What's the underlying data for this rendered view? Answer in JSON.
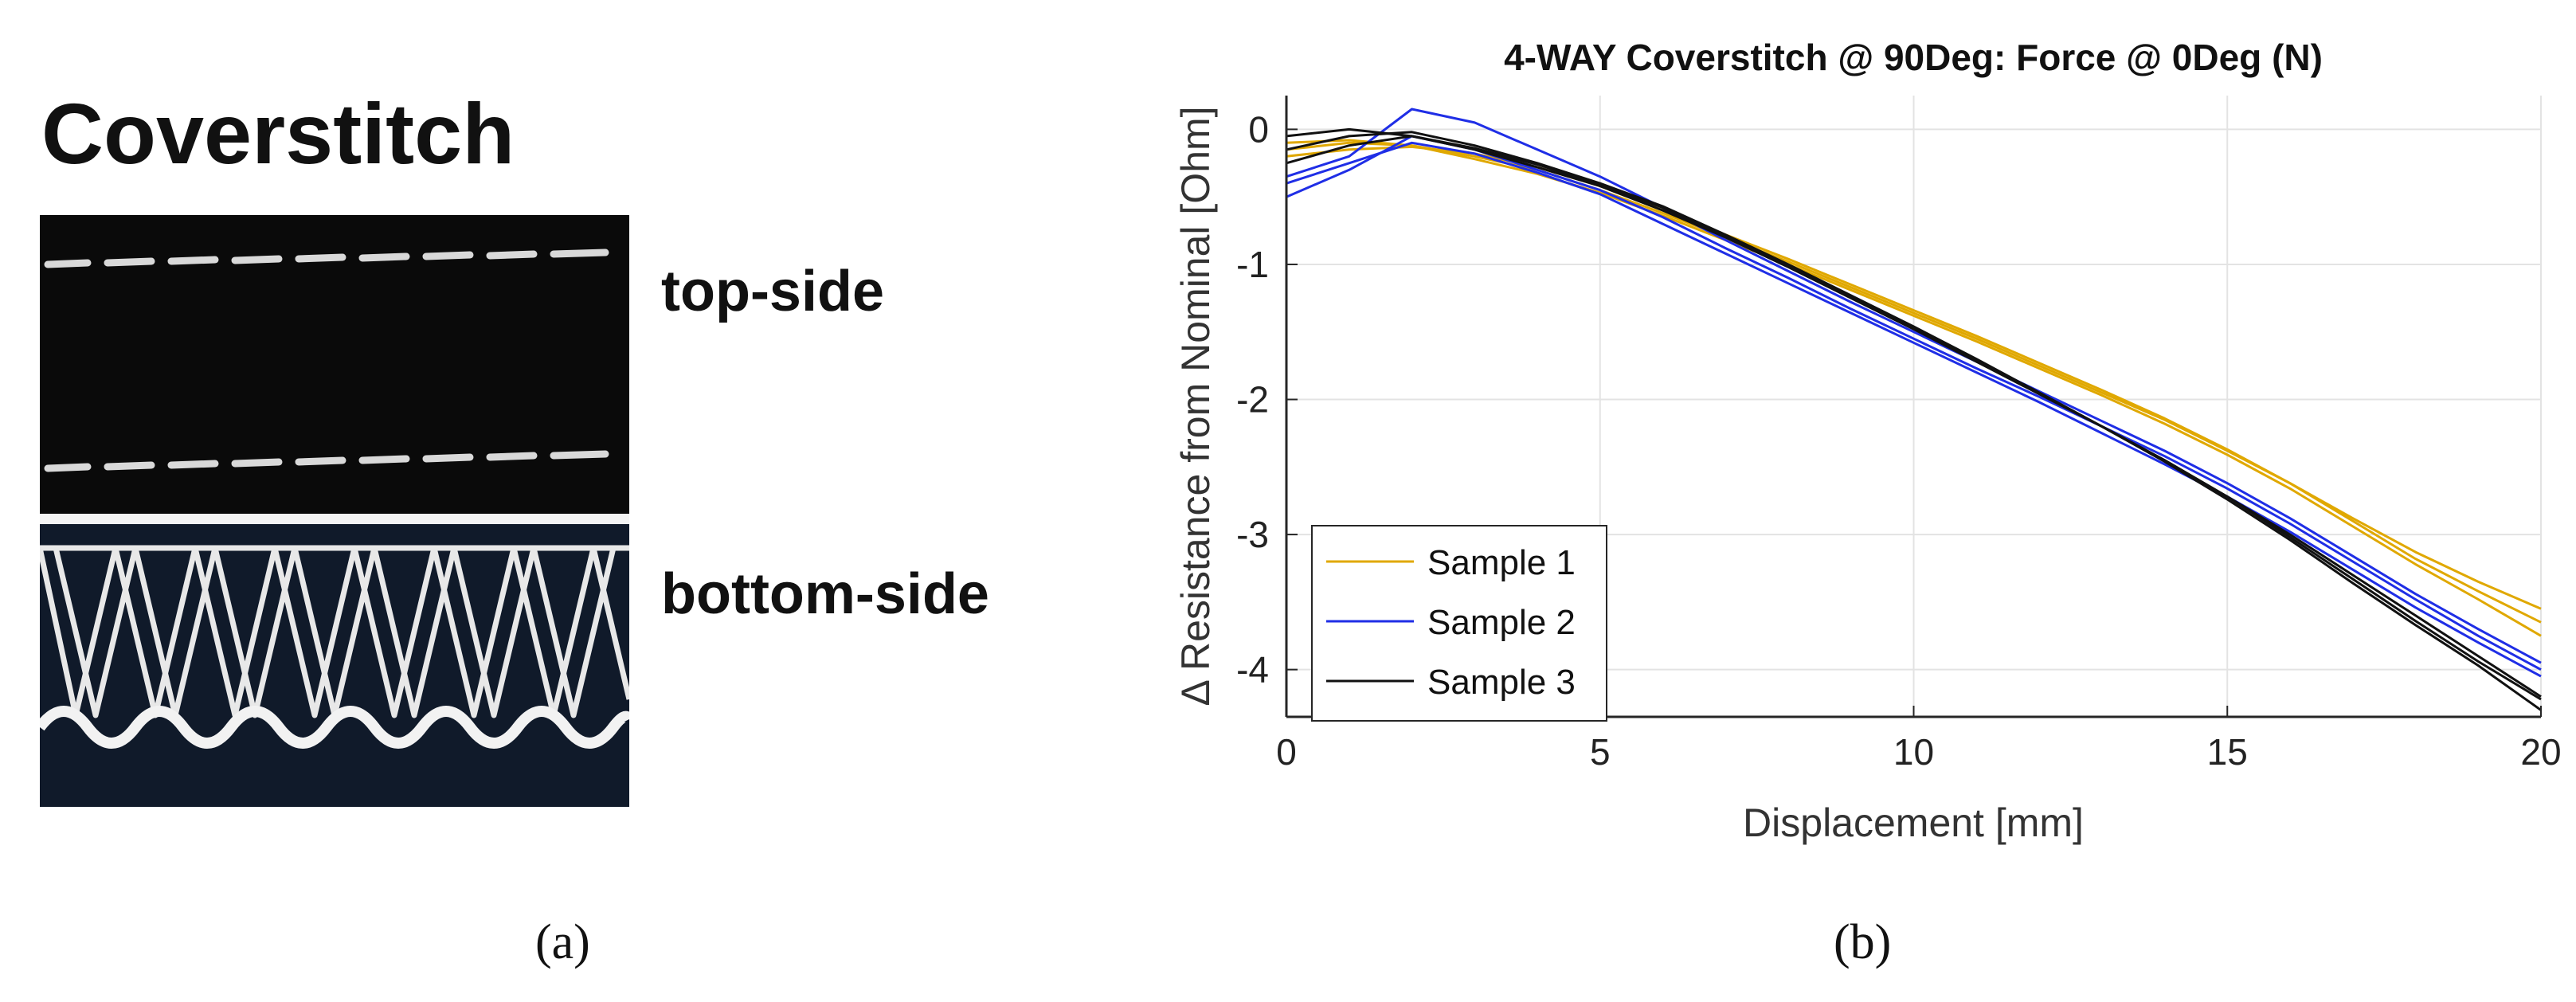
{
  "panel_a": {
    "heading": "Coverstitch",
    "top_label": "top-side",
    "bottom_label": "bottom-side",
    "caption": "(a)"
  },
  "panel_b": {
    "caption": "(b)"
  },
  "chart_data": {
    "type": "line",
    "title": "4-WAY Coverstitch @ 90Deg: Force @ 0Deg (N)",
    "xlabel": "Displacement [mm]",
    "ylabel": "Δ Resistance from Nominal [Ohm]",
    "xlim": [
      0,
      20
    ],
    "ylim": [
      -4.35,
      0.25
    ],
    "xticks": [
      0,
      5,
      10,
      15,
      20
    ],
    "xtick_labels": [
      "0",
      "5",
      "10",
      "15",
      "20"
    ],
    "yticks": [
      0,
      -1,
      -2,
      -3,
      -4
    ],
    "ytick_labels": [
      "0",
      "-1",
      "-2",
      "-3",
      "-4"
    ],
    "grid": true,
    "legend_position": "bottom-left",
    "x": [
      0,
      1,
      2,
      3,
      4,
      5,
      6,
      7,
      8,
      9,
      10,
      11,
      12,
      13,
      14,
      15,
      16,
      17,
      18,
      19,
      20
    ],
    "series": [
      {
        "name": "Sample 1",
        "color": "#e0a800",
        "runs": [
          [
            -0.15,
            -0.1,
            -0.12,
            -0.2,
            -0.3,
            -0.45,
            -0.62,
            -0.8,
            -0.98,
            -1.17,
            -1.36,
            -1.55,
            -1.75,
            -1.95,
            -2.15,
            -2.38,
            -2.62,
            -2.88,
            -3.13,
            -3.35,
            -3.55
          ],
          [
            -0.2,
            -0.15,
            -0.13,
            -0.18,
            -0.28,
            -0.42,
            -0.6,
            -0.78,
            -0.96,
            -1.15,
            -1.34,
            -1.53,
            -1.73,
            -1.93,
            -2.14,
            -2.37,
            -2.62,
            -2.9,
            -3.18,
            -3.42,
            -3.65
          ],
          [
            -0.1,
            -0.08,
            -0.12,
            -0.22,
            -0.33,
            -0.47,
            -0.64,
            -0.82,
            -1.0,
            -1.19,
            -1.38,
            -1.57,
            -1.77,
            -1.97,
            -2.18,
            -2.41,
            -2.66,
            -2.94,
            -3.22,
            -3.48,
            -3.75
          ]
        ]
      },
      {
        "name": "Sample 2",
        "color": "#1f2ee6",
        "runs": [
          [
            -0.35,
            -0.2,
            0.15,
            0.05,
            -0.15,
            -0.35,
            -0.58,
            -0.82,
            -1.05,
            -1.28,
            -1.5,
            -1.72,
            -1.94,
            -2.16,
            -2.38,
            -2.62,
            -2.88,
            -3.16,
            -3.44,
            -3.7,
            -3.95
          ],
          [
            -0.5,
            -0.3,
            -0.05,
            -0.15,
            -0.3,
            -0.45,
            -0.65,
            -0.88,
            -1.1,
            -1.33,
            -1.55,
            -1.77,
            -1.98,
            -2.2,
            -2.42,
            -2.66,
            -2.92,
            -3.2,
            -3.48,
            -3.75,
            -4.0
          ],
          [
            -0.4,
            -0.25,
            -0.1,
            -0.18,
            -0.32,
            -0.48,
            -0.7,
            -0.92,
            -1.14,
            -1.36,
            -1.58,
            -1.8,
            -2.02,
            -2.25,
            -2.48,
            -2.72,
            -2.98,
            -3.26,
            -3.54,
            -3.8,
            -4.05
          ]
        ]
      },
      {
        "name": "Sample 3",
        "color": "#111111",
        "runs": [
          [
            -0.05,
            0.0,
            -0.05,
            -0.15,
            -0.28,
            -0.42,
            -0.6,
            -0.8,
            -1.02,
            -1.25,
            -1.48,
            -1.72,
            -1.96,
            -2.2,
            -2.45,
            -2.72,
            -3.0,
            -3.3,
            -3.6,
            -3.9,
            -4.2
          ],
          [
            -0.15,
            -0.05,
            -0.02,
            -0.12,
            -0.25,
            -0.4,
            -0.57,
            -0.78,
            -1.0,
            -1.23,
            -1.46,
            -1.7,
            -1.95,
            -2.2,
            -2.46,
            -2.74,
            -3.04,
            -3.36,
            -3.67,
            -3.97,
            -4.3
          ],
          [
            -0.25,
            -0.12,
            -0.05,
            -0.14,
            -0.26,
            -0.41,
            -0.58,
            -0.79,
            -1.01,
            -1.24,
            -1.47,
            -1.71,
            -1.95,
            -2.2,
            -2.45,
            -2.72,
            -3.02,
            -3.33,
            -3.64,
            -3.94,
            -4.22
          ]
        ]
      }
    ]
  }
}
